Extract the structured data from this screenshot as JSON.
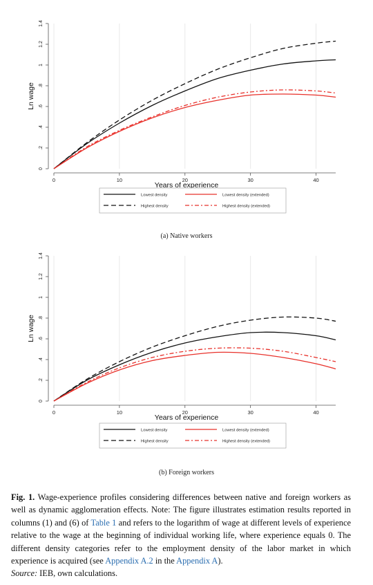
{
  "panels": [
    {
      "subcaption": "(a) Native workers",
      "chart_data": {
        "type": "line",
        "xlabel": "Years of experience",
        "ylabel": "Ln wage",
        "xlim": [
          0,
          43
        ],
        "ylim": [
          0,
          1.4
        ],
        "xticks": [
          0,
          10,
          20,
          30,
          40
        ],
        "yticks": [
          0,
          0.2,
          0.4,
          0.6,
          0.8,
          1.0,
          1.2,
          1.4
        ],
        "ytick_labels": [
          "0",
          ".2",
          ".4",
          ".6",
          ".8",
          "1",
          "1.2",
          "1.4"
        ],
        "grid": "vertical",
        "legend_position": "bottom",
        "series": [
          {
            "name": "Lowest density",
            "color": "#111111",
            "dash": "solid",
            "x": [
              0,
              5,
              10,
              15,
              20,
              25,
              30,
              35,
              40,
              43
            ],
            "y": [
              0,
              0.24,
              0.44,
              0.61,
              0.75,
              0.87,
              0.95,
              1.01,
              1.04,
              1.05
            ]
          },
          {
            "name": "Highest density",
            "color": "#111111",
            "dash": "long",
            "x": [
              0,
              5,
              10,
              15,
              20,
              25,
              30,
              35,
              40,
              43
            ],
            "y": [
              0,
              0.25,
              0.47,
              0.66,
              0.82,
              0.96,
              1.07,
              1.16,
              1.21,
              1.23
            ]
          },
          {
            "name": "Lowest density (extended)",
            "color": "#e8302a",
            "dash": "solid",
            "x": [
              0,
              5,
              10,
              15,
              20,
              25,
              30,
              35,
              40,
              43
            ],
            "y": [
              0,
              0.2,
              0.36,
              0.49,
              0.59,
              0.66,
              0.71,
              0.72,
              0.71,
              0.69
            ]
          },
          {
            "name": "Highest density (extended)",
            "color": "#e8302a",
            "dash": "dashdot",
            "x": [
              0,
              5,
              10,
              15,
              20,
              25,
              30,
              35,
              40,
              43
            ],
            "y": [
              0,
              0.21,
              0.37,
              0.5,
              0.61,
              0.69,
              0.74,
              0.76,
              0.75,
              0.73
            ]
          }
        ]
      }
    },
    {
      "subcaption": "(b) Foreign workers",
      "chart_data": {
        "type": "line",
        "xlabel": "Years of experience",
        "ylabel": "Ln wage",
        "xlim": [
          0,
          43
        ],
        "ylim": [
          0,
          1.4
        ],
        "xticks": [
          0,
          10,
          20,
          30,
          40
        ],
        "yticks": [
          0,
          0.2,
          0.4,
          0.6,
          0.8,
          1.0,
          1.2,
          1.4
        ],
        "ytick_labels": [
          "0",
          ".2",
          ".4",
          ".6",
          ".8",
          "1",
          "1.2",
          "1.4"
        ],
        "grid": "vertical",
        "legend_position": "bottom",
        "series": [
          {
            "name": "Lowest density",
            "color": "#111111",
            "dash": "solid",
            "x": [
              0,
              5,
              10,
              15,
              20,
              25,
              30,
              35,
              40,
              43
            ],
            "y": [
              0,
              0.2,
              0.35,
              0.47,
              0.56,
              0.62,
              0.66,
              0.66,
              0.63,
              0.59
            ]
          },
          {
            "name": "Highest density",
            "color": "#111111",
            "dash": "long",
            "x": [
              0,
              5,
              10,
              15,
              20,
              25,
              30,
              35,
              40,
              43
            ],
            "y": [
              0,
              0.21,
              0.38,
              0.52,
              0.63,
              0.72,
              0.78,
              0.81,
              0.8,
              0.77
            ]
          },
          {
            "name": "Lowest density (extended)",
            "color": "#e8302a",
            "dash": "solid",
            "x": [
              0,
              5,
              10,
              15,
              20,
              25,
              30,
              35,
              40,
              43
            ],
            "y": [
              0,
              0.17,
              0.3,
              0.39,
              0.44,
              0.47,
              0.46,
              0.42,
              0.36,
              0.31
            ]
          },
          {
            "name": "Highest density (extended)",
            "color": "#e8302a",
            "dash": "dashdot",
            "x": [
              0,
              5,
              10,
              15,
              20,
              25,
              30,
              35,
              40,
              43
            ],
            "y": [
              0,
              0.18,
              0.32,
              0.42,
              0.48,
              0.51,
              0.51,
              0.48,
              0.42,
              0.38
            ]
          }
        ]
      }
    }
  ],
  "caption": {
    "label": "Fig. 1.",
    "text_1": " Wage-experience profiles considering differences between native and foreign workers as well as dynamic agglomeration effects. Note: The figure illustrates estimation results reported in columns (1) and (6) of ",
    "link_1": "Table 1",
    "text_2": " and refers to the logarithm of wage at different levels of experience relative to the wage at the beginning of individual working life, where experience equals 0. The different density categories refer to the employment density of the labor market in which experience is acquired (see ",
    "link_2": "Appendix A.2",
    "text_3": " in the ",
    "link_3": "Appendix A",
    "text_4": ").",
    "source_label": "Source:",
    "source_text": " IEB, own calculations."
  }
}
